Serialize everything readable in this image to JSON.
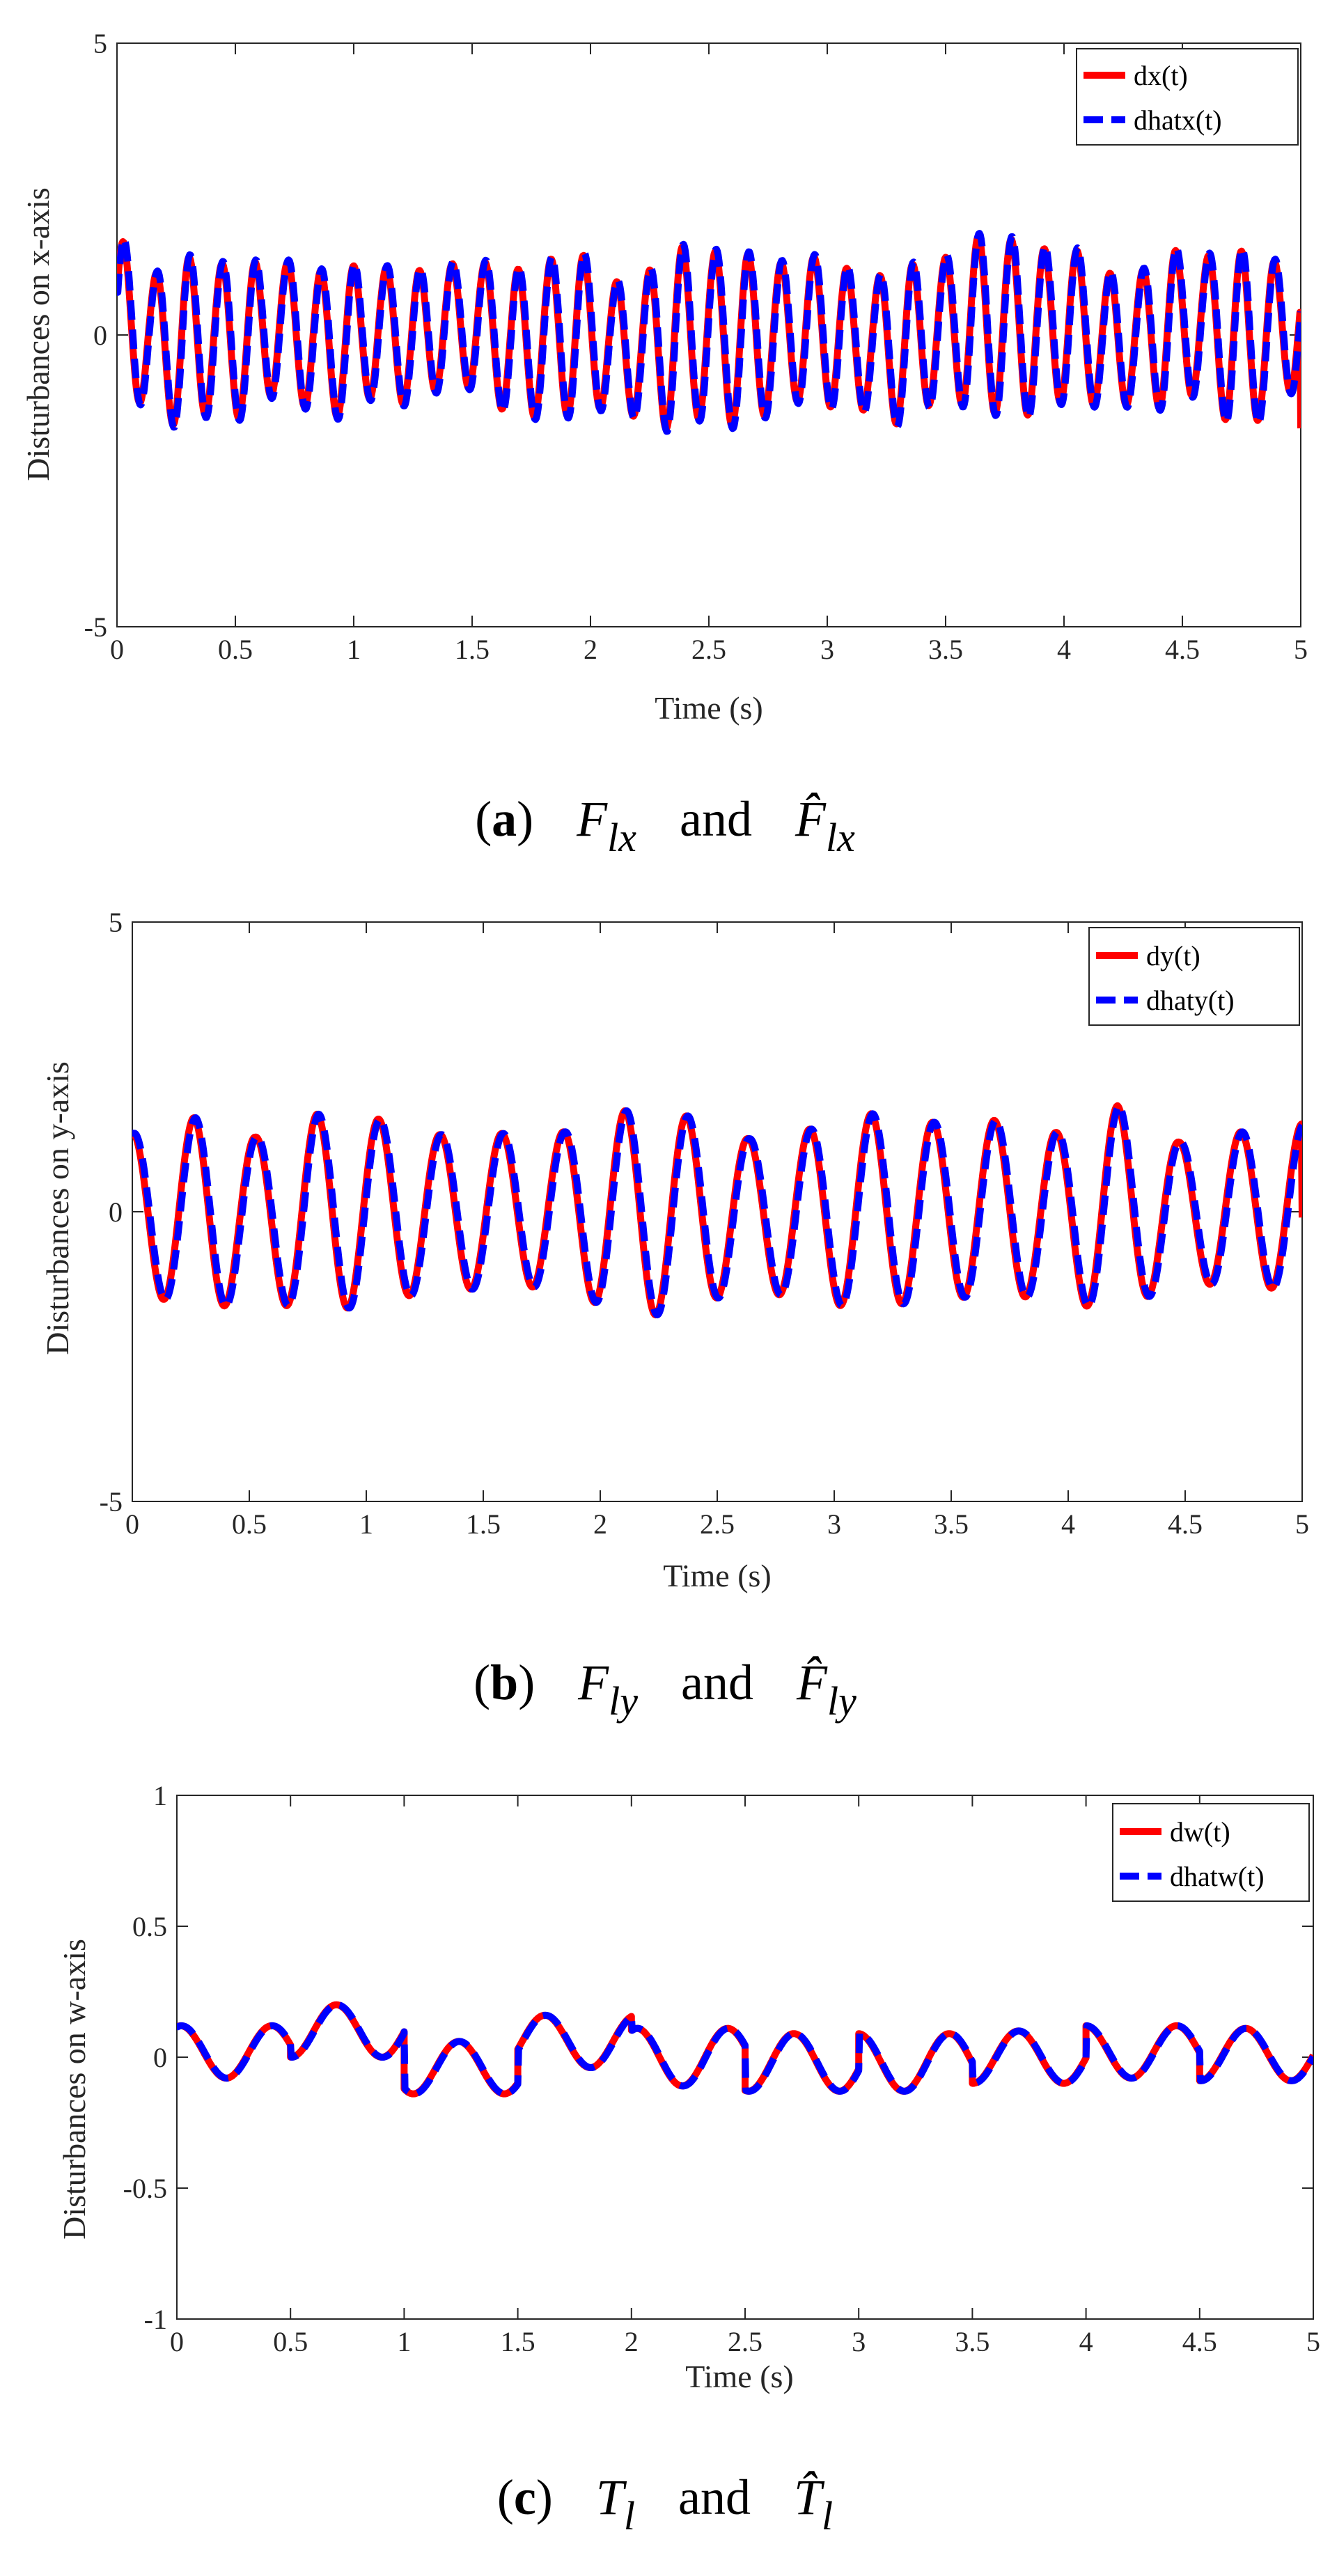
{
  "colors": {
    "measured": "#ff0000",
    "estimated": "#0000ff",
    "axis": "#262626"
  },
  "chart_data": [
    {
      "type": "line",
      "id": "a",
      "xlabel": "Time (s)",
      "ylabel": "Disturbances on x-axis",
      "xlim": [
        0,
        5
      ],
      "ylim": [
        -5,
        5
      ],
      "xticks": [
        0,
        0.5,
        1,
        1.5,
        2,
        2.5,
        3,
        3.5,
        4,
        4.5,
        5
      ],
      "yticks": [
        -5,
        0,
        5
      ],
      "xtick_labels": [
        "0",
        "0.5",
        "1",
        "1.5",
        "2",
        "2.5",
        "3",
        "3.5",
        "4",
        "4.5",
        "5"
      ],
      "ytick_labels": [
        "-5",
        "0",
        "5"
      ],
      "legend": [
        "dx(t)",
        "dhatx(t)"
      ],
      "legend_position": "top-right",
      "series_model": {
        "base_freq_hz": 7.2,
        "amp_range": [
          1.0,
          1.6
        ],
        "offset_range": [
          -0.25,
          0.25
        ],
        "estimate_lag_s": 0.004,
        "estimate_scale": 1.03,
        "start": 0.5,
        "end": -1.6
      },
      "caption": {
        "tag": "a",
        "sym1": "F",
        "sub1": "lx",
        "conj": "and",
        "sym2": "F̂",
        "sub2": "lx"
      }
    },
    {
      "type": "line",
      "id": "b",
      "xlabel": "Time (s)",
      "ylabel": "Disturbances on y-axis",
      "xlim": [
        0,
        5
      ],
      "ylim": [
        -5,
        5
      ],
      "xticks": [
        0,
        0.5,
        1,
        1.5,
        2,
        2.5,
        3,
        3.5,
        4,
        4.5,
        5
      ],
      "yticks": [
        -5,
        0,
        5
      ],
      "xtick_labels": [
        "0",
        "0.5",
        "1",
        "1.5",
        "2",
        "2.5",
        "3",
        "3.5",
        "4",
        "4.5",
        "5"
      ],
      "ytick_labels": [
        "-5",
        "0",
        "5"
      ],
      "legend": [
        "dy(t)",
        "dhaty(t)"
      ],
      "legend_position": "top-right",
      "series_model": {
        "base_freq_hz": 3.8,
        "amp_range": [
          1.2,
          1.9
        ],
        "offset_range": [
          -0.1,
          0.1
        ],
        "estimate_lag_s": 0.006,
        "estimate_scale": 1.0,
        "start": 1.5,
        "end": -0.1
      },
      "caption": {
        "tag": "b",
        "sym1": "F",
        "sub1": "ly",
        "conj": "and",
        "sym2": "F̂",
        "sub2": "ly"
      }
    },
    {
      "type": "line",
      "id": "c",
      "xlabel": "Time (s)",
      "ylabel": "Disturbances on w-axis",
      "xlim": [
        0,
        5
      ],
      "ylim": [
        -1,
        1
      ],
      "xticks": [
        0,
        0.5,
        1,
        1.5,
        2,
        2.5,
        3,
        3.5,
        4,
        4.5,
        5
      ],
      "yticks": [
        -1,
        -0.5,
        0,
        0.5,
        1
      ],
      "xtick_labels": [
        "0",
        "0.5",
        "1",
        "1.5",
        "2",
        "2.5",
        "3",
        "3.5",
        "4",
        "4.5",
        "5"
      ],
      "ytick_labels": [
        "-1",
        "-0.5",
        "0",
        "0.5",
        "1"
      ],
      "legend": [
        "dw(t)",
        "dhatw(t)"
      ],
      "legend_position": "top-right",
      "series_model": {
        "segments": [
          {
            "t0": 0.0,
            "t1": 0.5,
            "amp": 0.1,
            "offset": 0.02,
            "freq": 2.5,
            "phase": 1.3
          },
          {
            "t0": 0.5,
            "t1": 1.0,
            "amp": 0.1,
            "offset": 0.1,
            "freq": 2.5,
            "phase": -1.6
          },
          {
            "t0": 1.0,
            "t1": 1.5,
            "amp": 0.1,
            "offset": -0.04,
            "freq": 2.5,
            "phase": -2.2
          },
          {
            "t0": 1.5,
            "t1": 2.0,
            "amp": 0.1,
            "offset": 0.06,
            "freq": 2.5,
            "phase": -0.3
          },
          {
            "t0": 2.0,
            "t1": 2.5,
            "amp": 0.11,
            "offset": 0.0,
            "freq": 2.5,
            "phase": 1.2
          },
          {
            "t0": 2.5,
            "t1": 3.0,
            "amp": 0.11,
            "offset": -0.02,
            "freq": 2.5,
            "phase": -1.8
          },
          {
            "t0": 3.0,
            "t1": 3.5,
            "amp": 0.11,
            "offset": -0.02,
            "freq": 2.5,
            "phase": 1.6
          },
          {
            "t0": 3.5,
            "t1": 4.0,
            "amp": 0.1,
            "offset": 0.0,
            "freq": 2.5,
            "phase": -1.6
          },
          {
            "t0": 4.0,
            "t1": 4.5,
            "amp": 0.1,
            "offset": 0.02,
            "freq": 2.5,
            "phase": 1.6
          },
          {
            "t0": 4.5,
            "t1": 5.0,
            "amp": 0.1,
            "offset": 0.01,
            "freq": 2.5,
            "phase": -1.6
          }
        ],
        "estimate_lag_s": 0.004,
        "estimate_scale": 1.0
      },
      "caption": {
        "tag": "c",
        "sym1": "T",
        "sub1": "l",
        "conj": "and",
        "sym2": "T̂",
        "sub2": "l"
      }
    }
  ]
}
